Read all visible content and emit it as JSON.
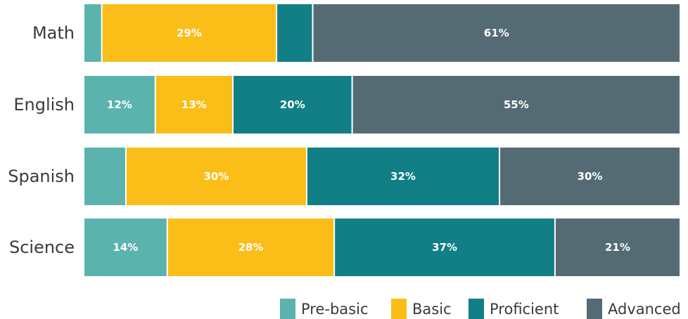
{
  "chart_data": {
    "type": "bar",
    "orientation": "horizontal",
    "stacked": true,
    "normalized_100": true,
    "title": "",
    "xlabel": "",
    "ylabel": "",
    "categories": [
      "Math",
      "English",
      "Spanish",
      "Science"
    ],
    "series": [
      {
        "name": "Pre-basic",
        "color": "#5bb3ad",
        "values": [
          3,
          12,
          7,
          14
        ],
        "labels": [
          "",
          "12%",
          "",
          "14%"
        ]
      },
      {
        "name": "Basic",
        "color": "#fbbd18",
        "values": [
          29,
          13,
          30,
          28
        ],
        "labels": [
          "29%",
          "13%",
          "30%",
          "28%"
        ]
      },
      {
        "name": "Proficient",
        "color": "#117f85",
        "values": [
          6,
          20,
          32,
          37
        ],
        "labels": [
          "",
          "20%",
          "32%",
          "37%"
        ]
      },
      {
        "name": "Advanced",
        "color": "#556b74",
        "values": [
          61,
          55,
          30,
          21
        ],
        "labels": [
          "61%",
          "55%",
          "30%",
          "21%"
        ]
      }
    ],
    "legend": {
      "position": "bottom-right",
      "entries": [
        "Pre-basic",
        "Basic",
        "Proficient",
        "Advanced"
      ]
    },
    "grid": false
  }
}
